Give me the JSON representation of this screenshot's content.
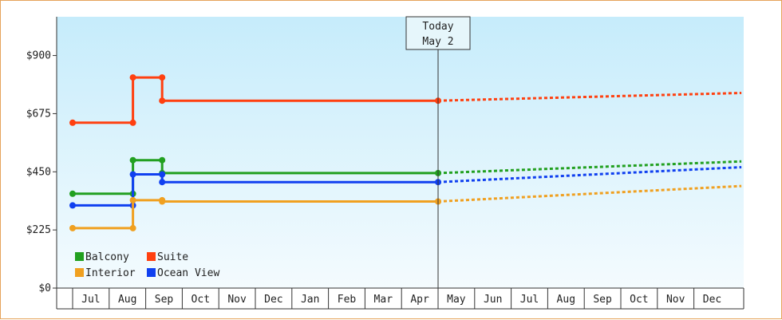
{
  "chart_data": {
    "type": "line",
    "step": true,
    "y_ticks": [
      "$0",
      "$225",
      "$450",
      "$675",
      "$900"
    ],
    "y_tick_values": [
      0,
      225,
      450,
      675,
      900
    ],
    "ylim": [
      0,
      1050
    ],
    "x_categories": [
      "Jul",
      "Aug",
      "Sep",
      "Oct",
      "Nov",
      "Dec",
      "Jan",
      "Feb",
      "Mar",
      "Apr",
      "May",
      "Jun",
      "Jul",
      "Aug",
      "Sep",
      "Oct",
      "Nov",
      "Dec"
    ],
    "today_marker": {
      "line1": "Today",
      "line2": "May 2",
      "x": 10.0
    },
    "legend": {
      "placement": "bottom-left",
      "entries": [
        {
          "name": "Balcony",
          "color": "#22a020"
        },
        {
          "name": "Suite",
          "color": "#ff4010"
        },
        {
          "name": "Interior",
          "color": "#f0a020"
        },
        {
          "name": "Ocean View",
          "color": "#1040f0"
        }
      ]
    },
    "series": [
      {
        "name": "Suite",
        "color": "#ff4010",
        "points": [
          [
            0.0,
            640
          ],
          [
            1.65,
            640
          ],
          [
            1.65,
            815
          ],
          [
            2.45,
            815
          ],
          [
            2.45,
            725
          ],
          [
            10.0,
            725
          ]
        ],
        "forecast": [
          [
            10.0,
            725
          ],
          [
            18.3,
            755
          ]
        ]
      },
      {
        "name": "Balcony",
        "color": "#22a020",
        "points": [
          [
            0.0,
            365
          ],
          [
            1.65,
            365
          ],
          [
            1.65,
            495
          ],
          [
            2.45,
            495
          ],
          [
            2.45,
            445
          ],
          [
            10.0,
            445
          ]
        ],
        "forecast": [
          [
            10.0,
            445
          ],
          [
            18.3,
            490
          ]
        ]
      },
      {
        "name": "Ocean View",
        "color": "#1040f0",
        "points": [
          [
            0.0,
            320
          ],
          [
            1.65,
            320
          ],
          [
            1.65,
            440
          ],
          [
            2.45,
            440
          ],
          [
            2.45,
            410
          ],
          [
            10.0,
            410
          ]
        ],
        "forecast": [
          [
            10.0,
            410
          ],
          [
            18.3,
            468
          ]
        ]
      },
      {
        "name": "Interior",
        "color": "#f0a020",
        "points": [
          [
            0.0,
            232
          ],
          [
            1.65,
            232
          ],
          [
            1.65,
            340
          ],
          [
            2.45,
            340
          ],
          [
            2.45,
            335
          ],
          [
            10.0,
            335
          ]
        ],
        "forecast": [
          [
            10.0,
            335
          ],
          [
            18.3,
            395
          ]
        ]
      }
    ]
  }
}
